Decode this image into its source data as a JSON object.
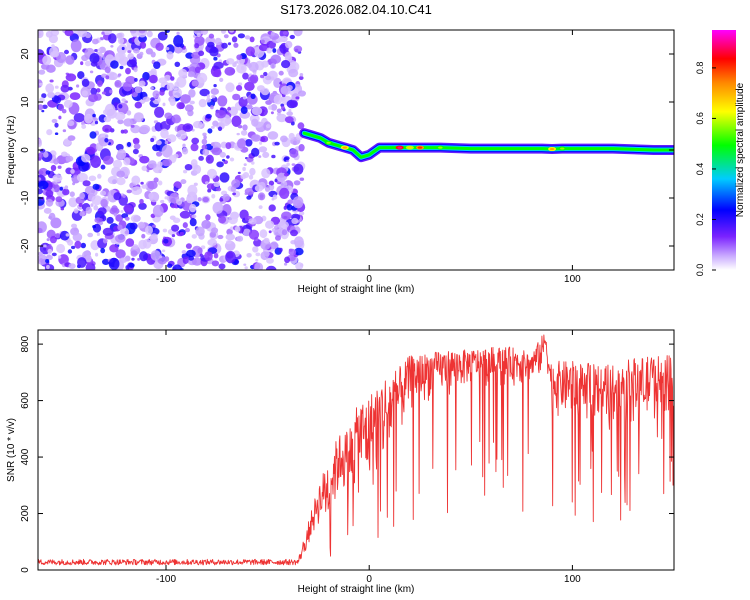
{
  "title": "S173.2026.082.04.10.C41",
  "chart_data": [
    {
      "type": "heatmap",
      "xlabel": "Height of straight line (km)",
      "ylabel": "Frequency (Hz)",
      "xlim": [
        -163,
        150
      ],
      "ylim": [
        -25,
        25
      ],
      "xticks": [
        -100,
        0,
        100
      ],
      "xtick_labels": [
        "-100",
        "0",
        "100"
      ],
      "yticks": [
        -20,
        -10,
        0,
        10,
        20
      ],
      "ytick_labels": [
        "-20",
        "-10",
        "0",
        "10",
        "20"
      ],
      "noise_region_x": [
        -163,
        -33
      ],
      "band_segments": [
        {
          "x": -32,
          "f": 3.5,
          "level": 0.45
        },
        {
          "x": -28,
          "f": 3.0,
          "level": 0.55
        },
        {
          "x": -24,
          "f": 2.5,
          "level": 0.5
        },
        {
          "x": -20,
          "f": 1.5,
          "level": 0.6
        },
        {
          "x": -16,
          "f": 1.0,
          "level": 0.5
        },
        {
          "x": -12,
          "f": 0.5,
          "level": 0.75
        },
        {
          "x": -8,
          "f": 0.0,
          "level": 0.5
        },
        {
          "x": -4,
          "f": -1.5,
          "level": 0.45
        },
        {
          "x": 0,
          "f": -1.0,
          "level": 0.5
        },
        {
          "x": 5,
          "f": 0.5,
          "level": 0.55
        },
        {
          "x": 10,
          "f": 0.5,
          "level": 0.55
        },
        {
          "x": 15,
          "f": 0.5,
          "level": 0.95
        },
        {
          "x": 20,
          "f": 0.5,
          "level": 0.7
        },
        {
          "x": 25,
          "f": 0.5,
          "level": 0.85
        },
        {
          "x": 35,
          "f": 0.5,
          "level": 0.6
        },
        {
          "x": 50,
          "f": 0.3,
          "level": 0.55
        },
        {
          "x": 70,
          "f": 0.3,
          "level": 0.5
        },
        {
          "x": 85,
          "f": 0.3,
          "level": 0.55
        },
        {
          "x": 90,
          "f": 0.2,
          "level": 0.75
        },
        {
          "x": 95,
          "f": 0.3,
          "level": 0.6
        },
        {
          "x": 100,
          "f": 0.3,
          "level": 0.5
        },
        {
          "x": 120,
          "f": 0.3,
          "level": 0.45
        },
        {
          "x": 140,
          "f": 0.0,
          "level": 0.45
        },
        {
          "x": 150,
          "f": 0.0,
          "level": 0.4
        }
      ],
      "colorbar": {
        "label": "Normalized spectral amplitude",
        "range": [
          0,
          0.95
        ],
        "ticks": [
          0.0,
          0.2,
          0.4,
          0.6,
          0.8
        ],
        "tick_labels": [
          "0.0",
          "0.2",
          "0.4",
          "0.6",
          "0.8"
        ],
        "colors": [
          "#ffffff",
          "#9955ff",
          "#0000ff",
          "#00ccff",
          "#00ff00",
          "#ffff00",
          "#ff8800",
          "#ff0000",
          "#ff00ff"
        ]
      }
    },
    {
      "type": "line",
      "xlabel": "Height of straight line (km)",
      "ylabel": "SNR (10 * v/v)",
      "xlim": [
        -163,
        150
      ],
      "ylim": [
        0,
        850
      ],
      "xticks": [
        -100,
        0,
        100
      ],
      "xtick_labels": [
        "-100",
        "0",
        "100"
      ],
      "yticks": [
        0,
        200,
        400,
        600,
        800
      ],
      "ytick_labels": [
        "0",
        "200",
        "400",
        "600",
        "800"
      ],
      "series": [
        {
          "name": "SNR",
          "color": "#ee3333",
          "envelope": {
            "x": [
              -163,
              -35,
              -25,
              -20,
              -15,
              -10,
              -5,
              0,
              5,
              10,
              15,
              20,
              30,
              40,
              50,
              60,
              70,
              80,
              85,
              87,
              89,
              90,
              100,
              110,
              120,
              130,
              140,
              150
            ],
            "low": [
              18,
              18,
              150,
              120,
              250,
              250,
              250,
              250,
              300,
              350,
              450,
              550,
              600,
              620,
              650,
              650,
              650,
              650,
              680,
              750,
              600,
              540,
              520,
              520,
              510,
              500,
              520,
              560
            ],
            "high": [
              38,
              38,
              300,
              400,
              480,
              500,
              600,
              620,
              680,
              700,
              720,
              760,
              770,
              780,
              780,
              790,
              790,
              770,
              830,
              850,
              740,
              740,
              740,
              730,
              730,
              750,
              760,
              760
            ]
          }
        }
      ]
    }
  ]
}
